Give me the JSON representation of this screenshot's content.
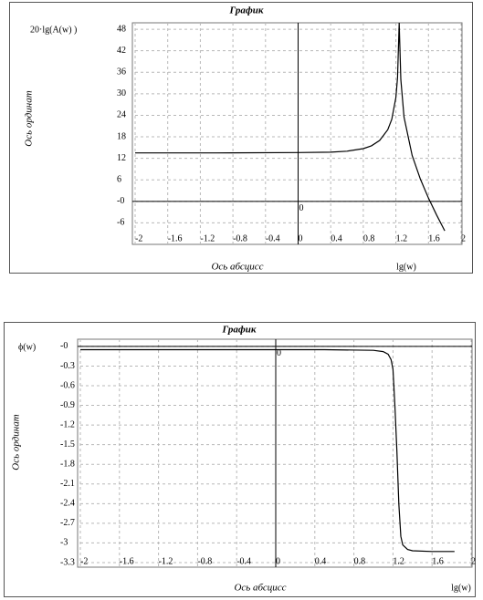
{
  "chart_data": [
    {
      "type": "line",
      "title": "График",
      "y_label": "Ось ординат",
      "x_label": "Ось абсцисс",
      "y_corner_label": "20·lg(A(w) )",
      "x_corner_label": "lg(w)",
      "origin_label": "0",
      "color": "#000000",
      "grid": true,
      "xlim": [
        -2,
        2
      ],
      "ylim": [
        -12,
        49.8
      ],
      "xticks": [
        -2,
        -1.6,
        -1.2,
        -0.8,
        -0.4,
        0,
        0.4,
        0.8,
        1.2,
        1.6,
        2
      ],
      "yticks": [
        -6,
        {
          "value": 0,
          "label": "-0"
        },
        6,
        12,
        18,
        24,
        30,
        36,
        42,
        48
      ],
      "x": [
        -2,
        -1,
        0,
        0.4,
        0.6,
        0.8,
        0.9,
        1.0,
        1.1,
        1.15,
        1.2,
        1.22,
        1.24,
        1.26,
        1.3,
        1.4,
        1.5,
        1.6,
        1.7,
        1.8
      ],
      "values": [
        13.5,
        13.5,
        13.6,
        13.7,
        14,
        14.7,
        15.5,
        17,
        20,
        22.9,
        29,
        34.5,
        49.8,
        34,
        23.5,
        12.8,
        6.2,
        0.9,
        -3.8,
        -8.2
      ]
    },
    {
      "type": "line",
      "title": "График",
      "y_label": "Ось ординат",
      "x_label": "Ось абсцисс",
      "y_corner_label": "ϕ(w)",
      "x_corner_label": "lg(w)",
      "origin_label": "0",
      "color": "#000000",
      "grid": true,
      "xlim": [
        -2,
        2
      ],
      "ylim": [
        -3.37,
        0.11
      ],
      "xticks": [
        -2,
        -1.6,
        -1.2,
        -0.8,
        -0.4,
        0,
        0.4,
        0.8,
        1.2,
        1.6,
        2
      ],
      "yticks": [
        {
          "value": 0,
          "label": "-0"
        },
        -0.3,
        -0.6,
        -0.9,
        -1.2,
        -1.5,
        -1.8,
        -2.1,
        -2.4,
        -2.7,
        -3,
        -3.3
      ],
      "x": [
        -2,
        -1,
        0,
        0.5,
        1.0,
        1.1,
        1.15,
        1.18,
        1.2,
        1.22,
        1.24,
        1.26,
        1.28,
        1.3,
        1.35,
        1.4,
        1.6,
        1.83
      ],
      "values": [
        -0.05,
        -0.05,
        -0.05,
        -0.05,
        -0.06,
        -0.08,
        -0.12,
        -0.2,
        -0.35,
        -0.9,
        -1.6,
        -2.4,
        -2.9,
        -3.03,
        -3.1,
        -3.12,
        -3.13,
        -3.13
      ]
    }
  ]
}
